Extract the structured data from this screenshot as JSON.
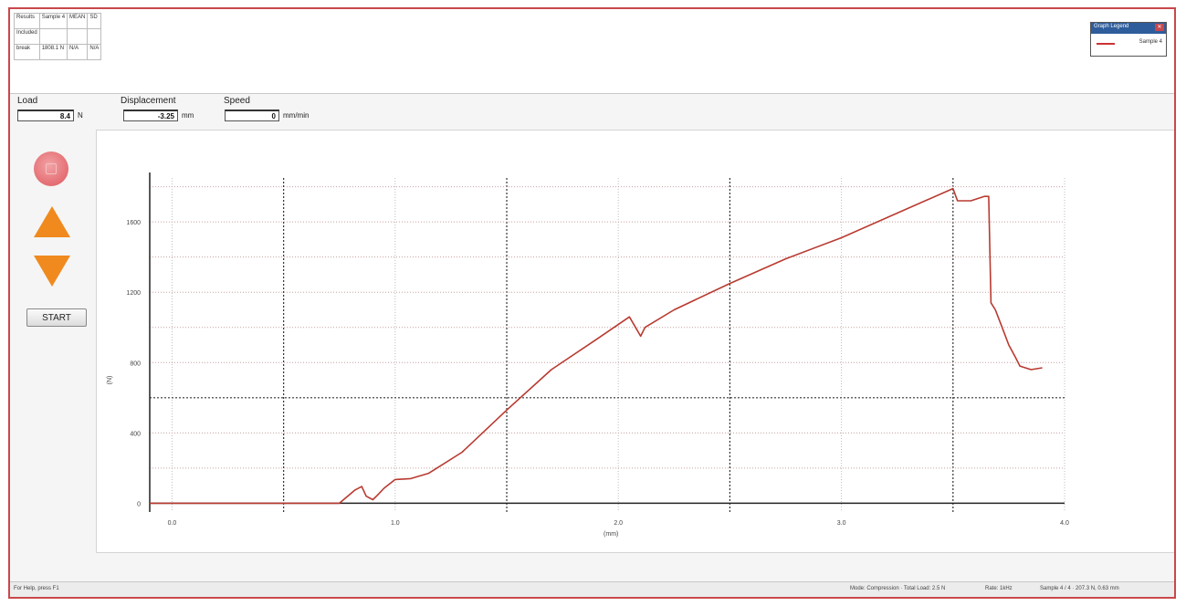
{
  "results_table": {
    "headers": [
      "Results",
      "Sample 4",
      "MEAN",
      "SD"
    ],
    "rows": [
      [
        "Included",
        "",
        "",
        ""
      ],
      [
        "break",
        "1808.1 N",
        "N/A",
        "N/A"
      ]
    ]
  },
  "legend": {
    "title": "Graph Legend",
    "series_label": "Sample 4"
  },
  "readouts": {
    "load_label": "Load",
    "load_value": "8.4",
    "load_unit": "N",
    "displacement_label": "Displacement",
    "displacement_value": "-3.25",
    "displacement_unit": "mm",
    "speed_label": "Speed",
    "speed_value": "0",
    "speed_unit": "mm/min"
  },
  "controls": {
    "start_label": "START"
  },
  "status": {
    "help": "For Help, press F1",
    "mode": "Mode: Compression · Total Load: 2.5 N",
    "rate": "Rate: 1kHz",
    "sample": "Sample 4 / 4 · 207.3 N, 0.63 mm"
  },
  "colors": {
    "series": "#b83a30",
    "frame": "#c9474c",
    "arrow": "#f08a1e",
    "stop": "#e46d72"
  },
  "chart_data": {
    "type": "line",
    "xlabel": "(mm)",
    "ylabel": "(N)",
    "xlim": [
      -0.1,
      4.0
    ],
    "ylim": [
      -50,
      1850
    ],
    "x_ticks": [
      "0.0",
      "1.0",
      "2.0",
      "3.0",
      "4.0"
    ],
    "x_tick_values": [
      0,
      1,
      2,
      3,
      4
    ],
    "y_ticks": [
      "0",
      "400",
      "800",
      "1200",
      "1600"
    ],
    "y_tick_values": [
      0,
      400,
      800,
      1200,
      1600
    ],
    "grid": true,
    "series": [
      {
        "name": "Sample 4",
        "x": [
          -0.1,
          0.75,
          0.82,
          0.85,
          0.87,
          0.9,
          0.92,
          0.95,
          1.0,
          1.07,
          1.15,
          1.3,
          1.5,
          1.7,
          1.9,
          2.05,
          2.1,
          2.12,
          2.25,
          2.5,
          2.75,
          3.0,
          3.25,
          3.5,
          3.52,
          3.58,
          3.64,
          3.66,
          3.67,
          3.69,
          3.72,
          3.75,
          3.78,
          3.8,
          3.85,
          3.9
        ],
        "y": [
          0,
          0,
          75,
          95,
          40,
          20,
          45,
          85,
          135,
          140,
          170,
          290,
          530,
          760,
          930,
          1060,
          950,
          1000,
          1100,
          1250,
          1390,
          1510,
          1650,
          1790,
          1720,
          1720,
          1745,
          1745,
          1140,
          1100,
          1000,
          900,
          830,
          780,
          760,
          770
        ]
      }
    ]
  }
}
